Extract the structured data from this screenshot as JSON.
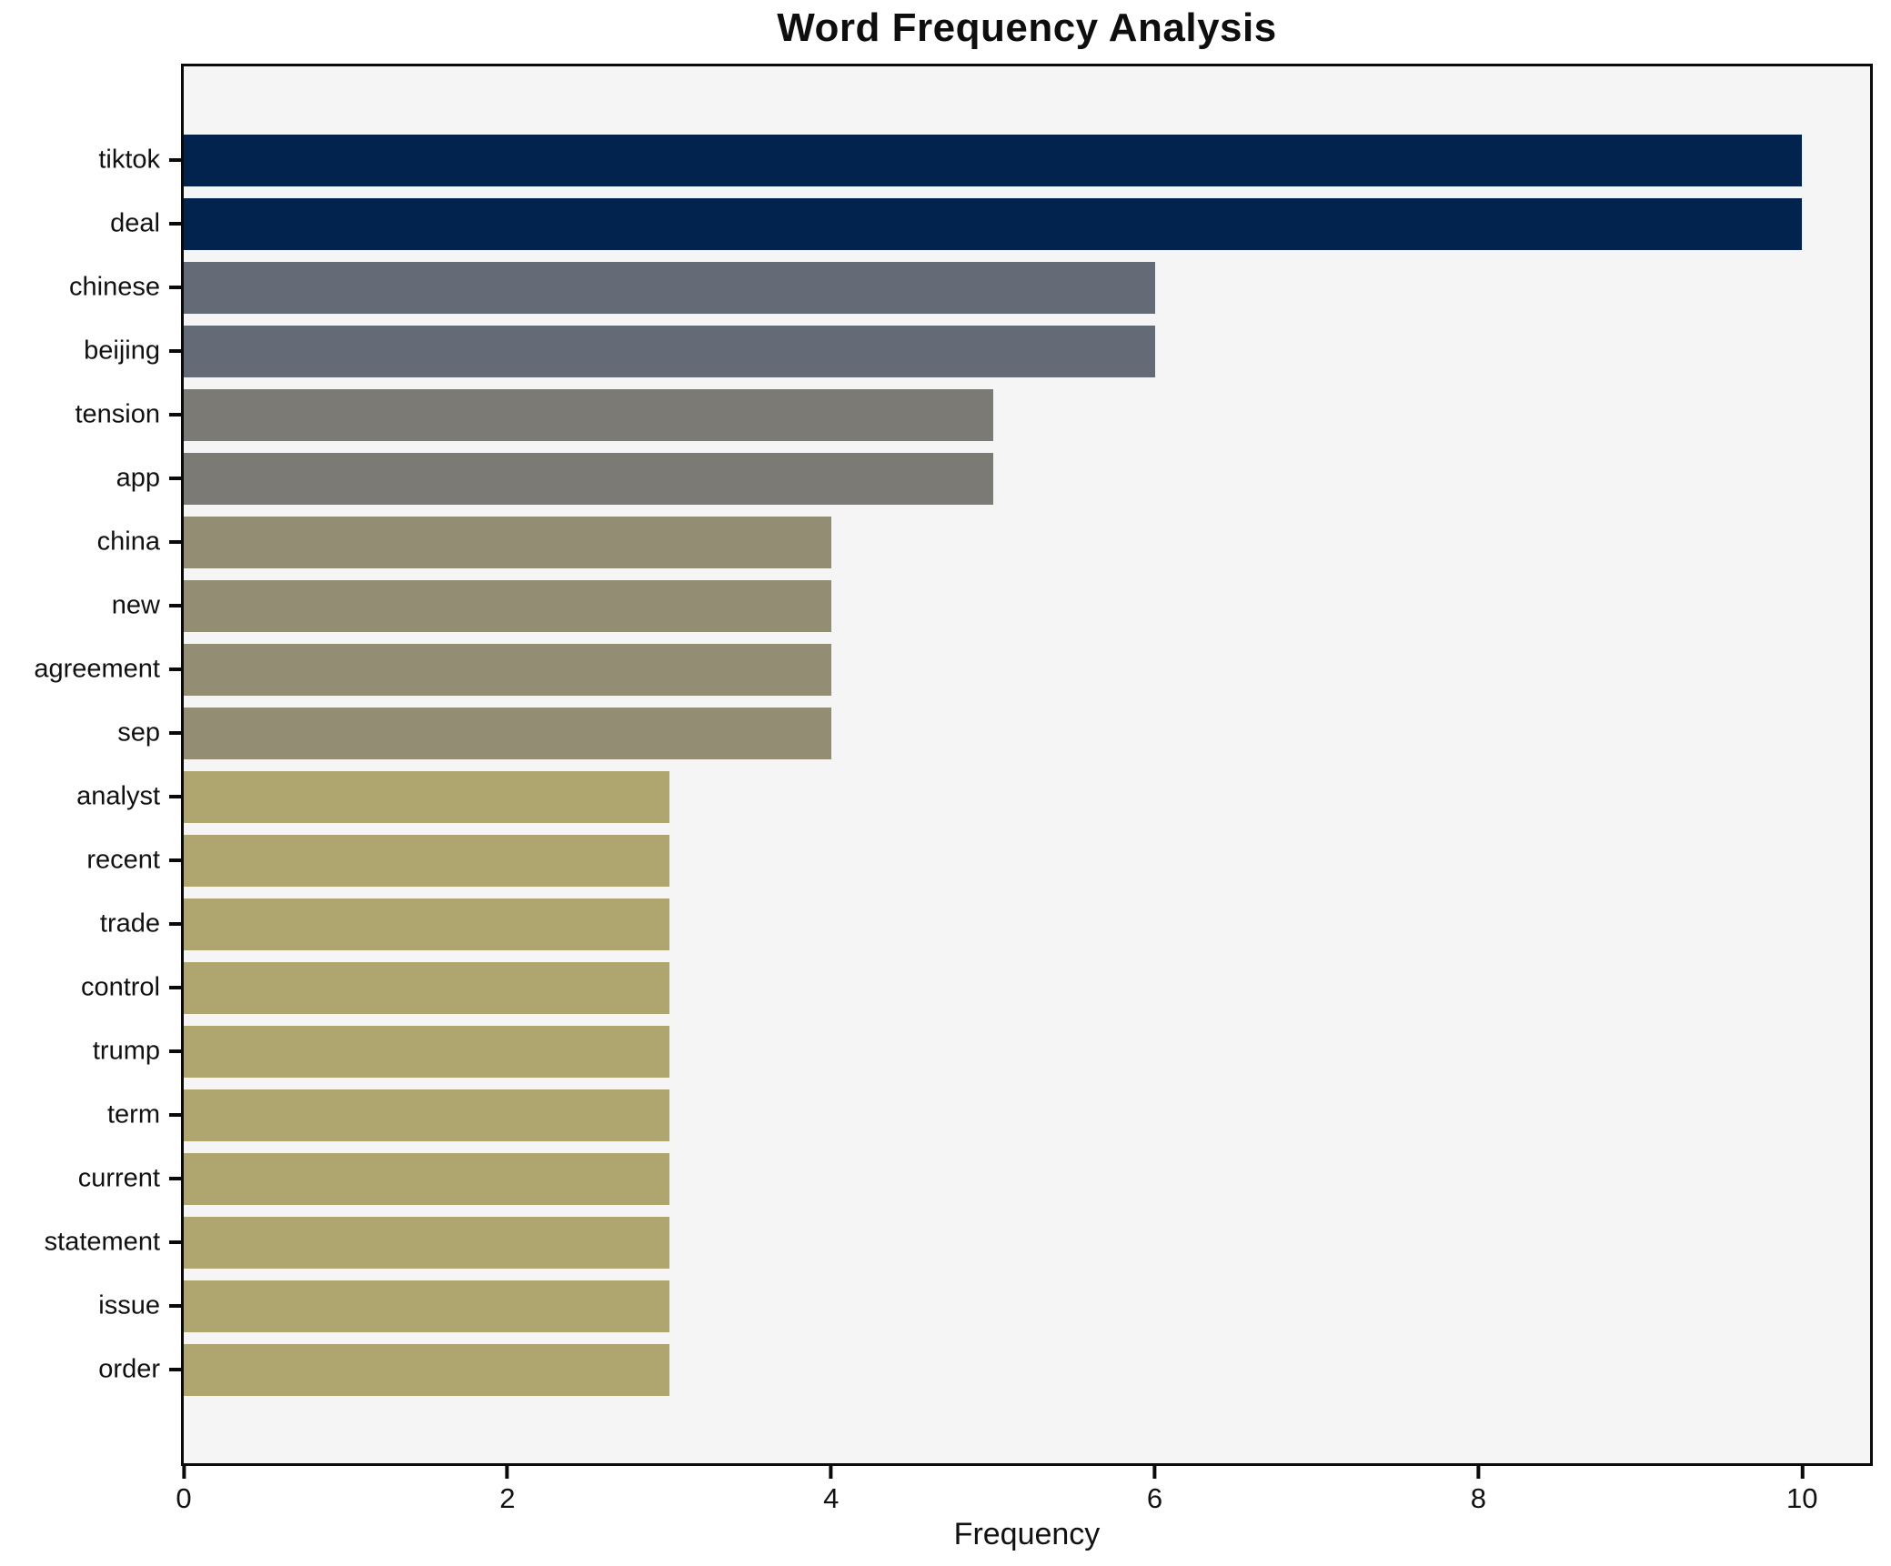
{
  "chart_data": {
    "type": "bar",
    "orientation": "horizontal",
    "title": "Word Frequency Analysis",
    "xlabel": "Frequency",
    "ylabel": "",
    "categories": [
      "tiktok",
      "deal",
      "chinese",
      "beijing",
      "tension",
      "app",
      "china",
      "new",
      "agreement",
      "sep",
      "analyst",
      "recent",
      "trade",
      "control",
      "trump",
      "term",
      "current",
      "statement",
      "issue",
      "order"
    ],
    "values": [
      10,
      10,
      6,
      6,
      5,
      5,
      4,
      4,
      4,
      4,
      3,
      3,
      3,
      3,
      3,
      3,
      3,
      3,
      3,
      3
    ],
    "bar_colors": [
      "#02234e",
      "#02234e",
      "#656b76",
      "#656b76",
      "#7b7a74",
      "#7b7a74",
      "#938d73",
      "#938d73",
      "#938d73",
      "#938d73",
      "#afa56e",
      "#afa56e",
      "#afa56e",
      "#afa56e",
      "#afa56e",
      "#afa56e",
      "#afa56e",
      "#afa56e",
      "#afa56e",
      "#afa56e"
    ],
    "xticks": [
      0,
      2,
      4,
      6,
      8,
      10
    ],
    "xlim": [
      0,
      10.42
    ],
    "grid": false,
    "legend": false,
    "plot_background": "#f5f5f6",
    "figure_background": "#ffffff",
    "spine_color": "#0a0a0a"
  }
}
